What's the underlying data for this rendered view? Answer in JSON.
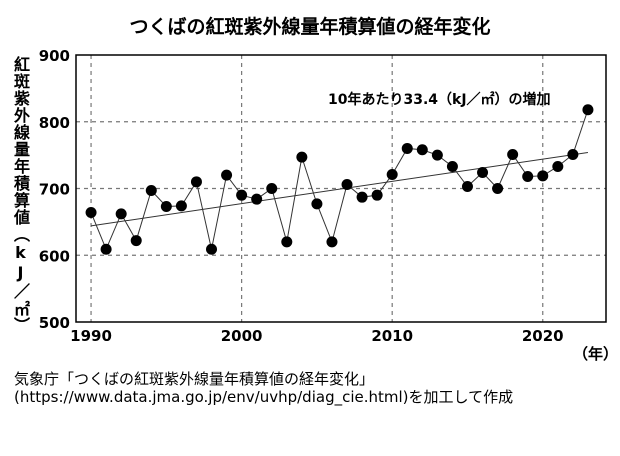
{
  "chart_data": {
    "type": "line",
    "title": "つくばの紅斑紫外線量年積算値の経年変化",
    "ylabel": "紅斑紫外線量年積算値（kJ／㎡）",
    "xlabel": "（年）",
    "xlim": [
      1989,
      2024.2
    ],
    "ylim": [
      500,
      900
    ],
    "xticks": [
      1990,
      2000,
      2010,
      2020
    ],
    "yticks": [
      500,
      600,
      700,
      800,
      900
    ],
    "grid": true,
    "annotation": "10年あたり33.4（kJ／㎡）の増加",
    "x": [
      1990,
      1991,
      1992,
      1993,
      1994,
      1995,
      1996,
      1997,
      1998,
      1999,
      2000,
      2001,
      2002,
      2003,
      2004,
      2005,
      2006,
      2007,
      2008,
      2009,
      2010,
      2011,
      2012,
      2013,
      2014,
      2015,
      2016,
      2017,
      2018,
      2019,
      2020,
      2021,
      2022,
      2023
    ],
    "values": [
      664,
      609,
      662,
      622,
      697,
      673,
      674,
      710,
      609,
      720,
      690,
      684,
      700,
      620,
      747,
      677,
      620,
      706,
      687,
      690,
      721,
      760,
      758,
      750,
      733,
      703,
      724,
      700,
      751,
      718,
      719,
      733,
      751,
      818
    ],
    "trend": {
      "x": [
        1990,
        2023
      ],
      "y": [
        644,
        754
      ]
    },
    "colors": {
      "points": "#000000",
      "line": "#333333",
      "grid": "#777777"
    }
  },
  "source": "気象庁「つくばの紅斑紫外線量年積算値の経年変化」(https://www.data.jma.go.jp/env/uvhp/diag_cie.html)を加工して作成"
}
